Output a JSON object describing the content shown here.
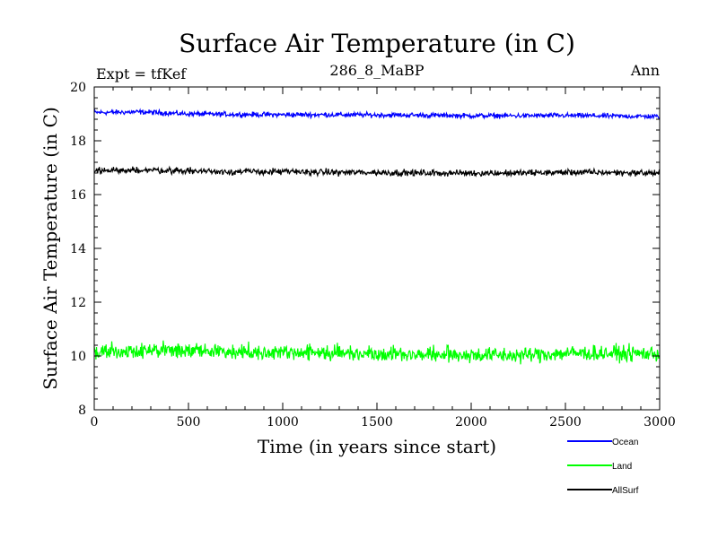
{
  "chart_data": {
    "type": "line",
    "title": "Surface Air Temperature (in C)",
    "subtitle": "286_8_MaBP",
    "left_label": "Expt = tfKef",
    "right_label": "Ann",
    "xlabel": "Time (in years since start)",
    "ylabel": "Surface Air Temperature (in C)",
    "xlim": [
      0,
      3000
    ],
    "ylim": [
      8,
      20
    ],
    "x_ticks": [
      0,
      500,
      1000,
      1500,
      2000,
      2500,
      3000
    ],
    "y_ticks": [
      8,
      10,
      12,
      14,
      16,
      18,
      20
    ],
    "grid": false,
    "legend_position": "bottom-right-outside",
    "series": [
      {
        "name": "Ocean",
        "color": "#0000ff",
        "x": [
          0,
          250,
          500,
          750,
          1000,
          1250,
          1500,
          1750,
          2000,
          2250,
          2500,
          2750,
          3000
        ],
        "y": [
          19.05,
          19.07,
          19.0,
          18.98,
          18.97,
          18.97,
          18.96,
          18.95,
          18.93,
          18.93,
          18.94,
          18.92,
          18.9
        ],
        "noise_amplitude": 0.07
      },
      {
        "name": "Land",
        "color": "#00ff00",
        "x": [
          0,
          250,
          500,
          750,
          1000,
          1250,
          1500,
          1750,
          2000,
          2250,
          2500,
          2750,
          3000
        ],
        "y": [
          10.15,
          10.2,
          10.2,
          10.15,
          10.15,
          10.12,
          10.1,
          10.05,
          10.05,
          10.02,
          10.1,
          10.1,
          10.08
        ],
        "noise_amplitude": 0.22
      },
      {
        "name": "AllSurf",
        "color": "#000000",
        "x": [
          0,
          250,
          500,
          750,
          1000,
          1250,
          1500,
          1750,
          2000,
          2250,
          2500,
          2750,
          3000
        ],
        "y": [
          16.88,
          16.92,
          16.88,
          16.85,
          16.85,
          16.83,
          16.82,
          16.8,
          16.8,
          16.8,
          16.83,
          16.82,
          16.8
        ],
        "noise_amplitude": 0.09
      }
    ]
  }
}
